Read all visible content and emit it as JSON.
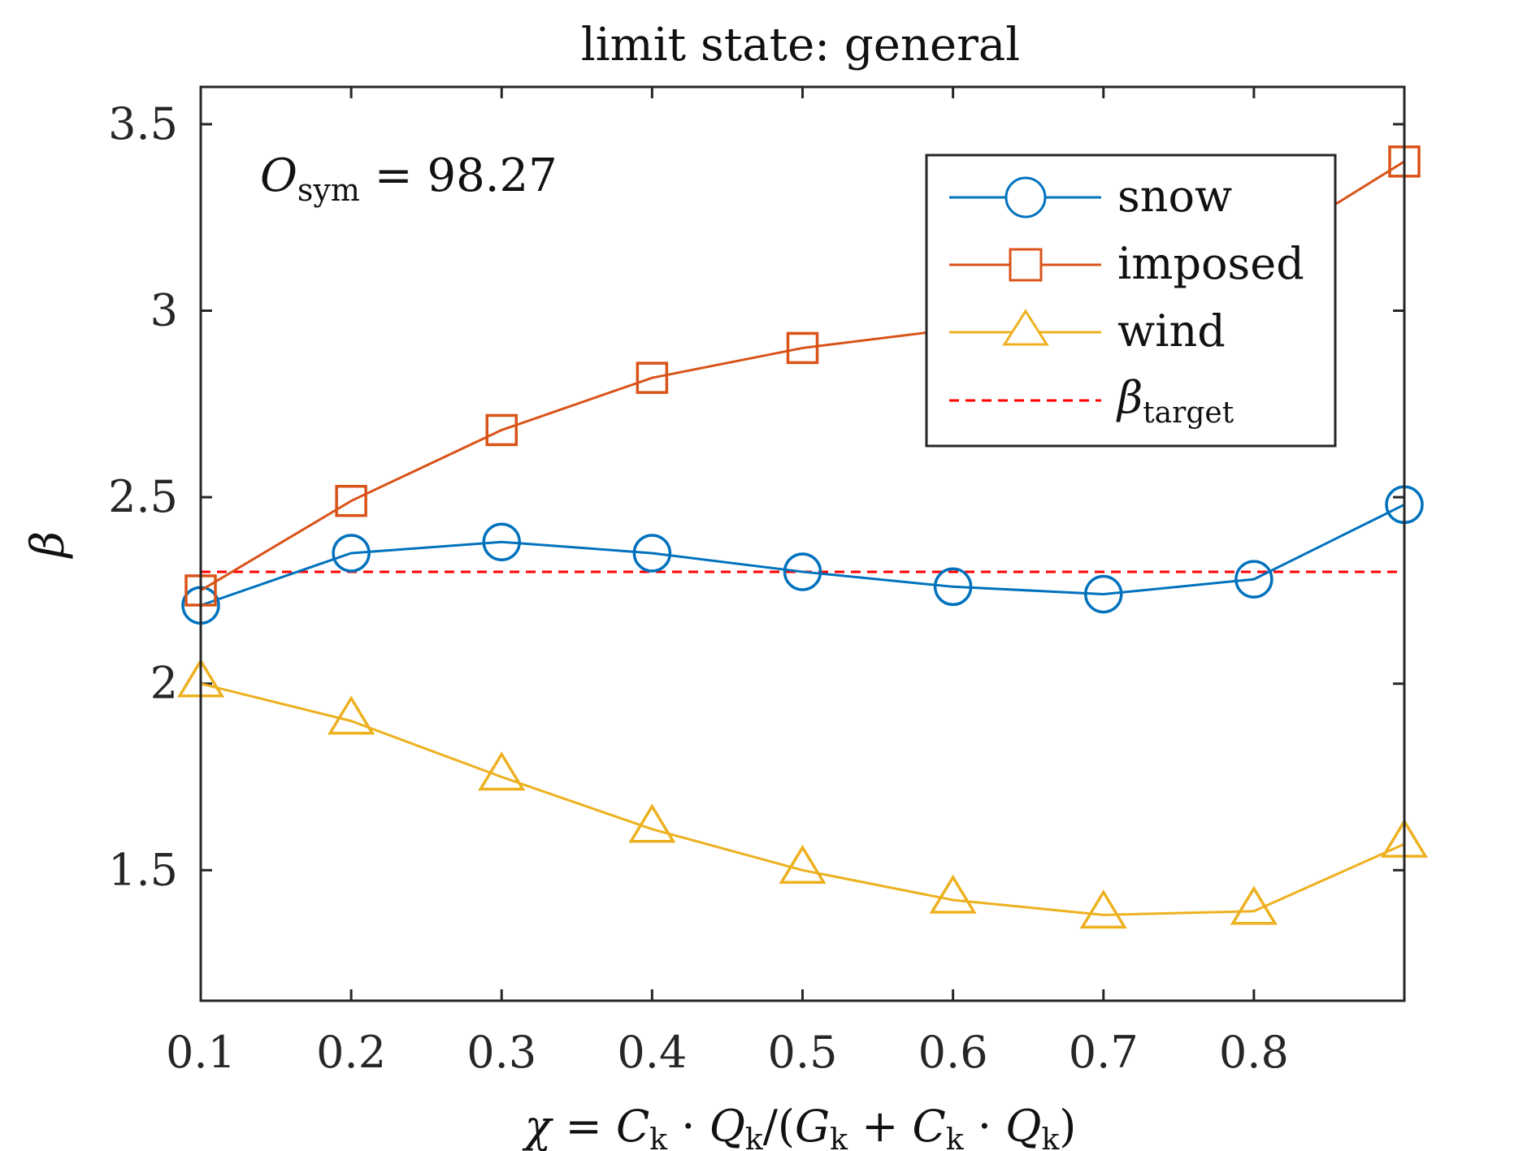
{
  "chart_data": {
    "type": "line",
    "title": "limit state: general",
    "xlabel": {
      "chi": "χ",
      "eq": " = ",
      "C": "C",
      "k": "k",
      "dot": " · ",
      "Q": "Q",
      "slash": "/(",
      "G": "G",
      "plus": " + ",
      "close": ")"
    },
    "ylabel": "β",
    "annotation": {
      "symbol": "O",
      "subscript": "sym",
      "text": " = 98.27"
    },
    "xlim": [
      0.1,
      0.9
    ],
    "ylim": [
      1.15,
      3.6
    ],
    "xticks": [
      0.1,
      0.2,
      0.3,
      0.4,
      0.5,
      0.6,
      0.7,
      0.8
    ],
    "xtick_labels": [
      "0.1",
      "0.2",
      "0.3",
      "0.4",
      "0.5",
      "0.6",
      "0.7",
      "0.8"
    ],
    "yticks": [
      1.5,
      2,
      2.5,
      3,
      3.5
    ],
    "ytick_labels": [
      "1.5",
      "2",
      "2.5",
      "3",
      "3.5"
    ],
    "x": [
      0.1,
      0.2,
      0.3,
      0.4,
      0.5,
      0.6,
      0.7,
      0.8,
      0.9
    ],
    "series": [
      {
        "name": "snow",
        "color": "#0072BD",
        "marker": "circle",
        "values": [
          2.21,
          2.35,
          2.38,
          2.35,
          2.3,
          2.26,
          2.24,
          2.28,
          2.48
        ]
      },
      {
        "name": "imposed",
        "color": "#D95319",
        "marker": "square",
        "values": [
          2.25,
          2.49,
          2.68,
          2.82,
          2.9,
          2.95,
          3.03,
          3.15,
          3.4
        ]
      },
      {
        "name": "wind",
        "color": "#EDB120",
        "marker": "triangle",
        "values": [
          2.0,
          1.9,
          1.75,
          1.61,
          1.5,
          1.42,
          1.38,
          1.39,
          1.57
        ]
      }
    ],
    "reference_line": {
      "value": 2.3,
      "color": "#FF0000",
      "style": "dashed",
      "label_symbol": "β",
      "label_subscript": "target"
    },
    "legend": {
      "placement": "top-right"
    },
    "grid": false
  }
}
